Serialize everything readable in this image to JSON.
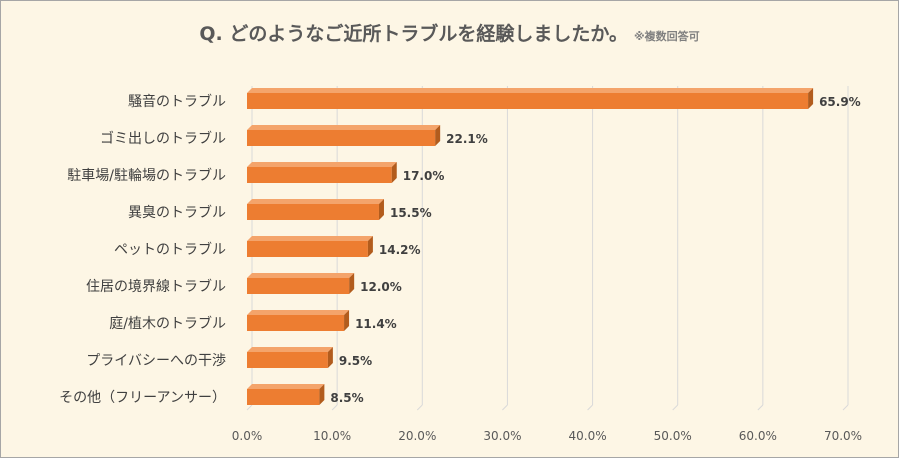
{
  "title": "Q. どのようなご近所トラブルを経験しましたか。",
  "note": "※複数回答可",
  "colors": {
    "bar_front": "#ed7d31",
    "bar_side": "#b25c1d",
    "bar_top": "#f4a46b",
    "grid": "#d9d9d9",
    "label_text": "#404040",
    "axis_text": "#595959"
  },
  "chart_data": {
    "type": "bar",
    "orientation": "horizontal",
    "style": "3d-clustered",
    "title": "Q. どのようなご近所トラブルを経験しましたか。",
    "categories": [
      "騒音のトラブル",
      "ゴミ出しのトラブル",
      "駐車場/駐輪場のトラブル",
      "異臭のトラブル",
      "ペットのトラブル",
      "住居の境界線トラブル",
      "庭/植木のトラブル",
      "プライバシーへの干渉",
      "その他（フリーアンサー）"
    ],
    "values": [
      65.9,
      22.1,
      17.0,
      15.5,
      14.2,
      12.0,
      11.4,
      9.5,
      8.5
    ],
    "value_labels": [
      "65.9%",
      "22.1%",
      "17.0%",
      "15.5%",
      "14.2%",
      "12.0%",
      "11.4%",
      "9.5%",
      "8.5%"
    ],
    "xlim": [
      0,
      70
    ],
    "xticks": [
      0,
      10,
      20,
      30,
      40,
      50,
      60,
      70
    ],
    "xtick_labels": [
      "0.0%",
      "10.0%",
      "20.0%",
      "30.0%",
      "40.0%",
      "50.0%",
      "60.0%",
      "70.0%"
    ],
    "grid": true,
    "legend": "none"
  }
}
